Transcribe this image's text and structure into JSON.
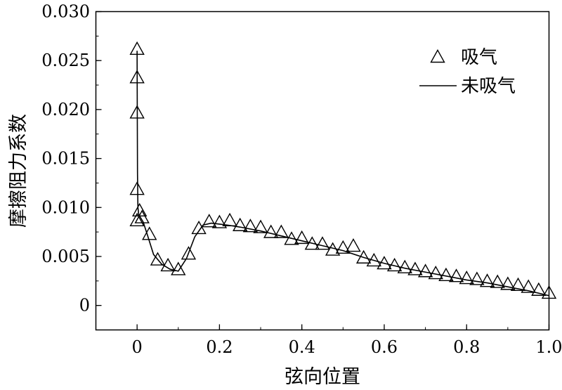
{
  "chart_data": {
    "type": "line",
    "xlabel": "弦向位置",
    "ylabel": "摩擦阻力系数",
    "xlim": [
      -0.1,
      1.0
    ],
    "ylim": [
      -0.0025,
      0.03
    ],
    "xticks": [
      0,
      0.2,
      0.4,
      0.6,
      0.8,
      1.0
    ],
    "xtick_labels": [
      "0",
      "0.2",
      "0.4",
      "0.6",
      "0.8",
      "1.0"
    ],
    "yticks": [
      0,
      0.005,
      0.01,
      0.015,
      0.02,
      0.025,
      0.03
    ],
    "ytick_labels": [
      "0",
      "0.005",
      "0.010",
      "0.015",
      "0.020",
      "0.025",
      "0.030"
    ],
    "legend_position": "top-right",
    "grid": false,
    "series": [
      {
        "name": "吸气",
        "style": "triangle-markers",
        "x": [
          0,
          0,
          0,
          0,
          0,
          0.006,
          0.012,
          0.03,
          0.05,
          0.075,
          0.1,
          0.125,
          0.15,
          0.175,
          0.2,
          0.225,
          0.25,
          0.275,
          0.3,
          0.325,
          0.35,
          0.375,
          0.4,
          0.425,
          0.45,
          0.475,
          0.5,
          0.525,
          0.55,
          0.575,
          0.6,
          0.625,
          0.65,
          0.675,
          0.7,
          0.725,
          0.75,
          0.775,
          0.8,
          0.825,
          0.85,
          0.875,
          0.9,
          0.925,
          0.95,
          0.975,
          1.0
        ],
        "y": [
          0.0261,
          0.0232,
          0.0196,
          0.0118,
          0.0086,
          0.0096,
          0.0089,
          0.0072,
          0.0046,
          0.004,
          0.0036,
          0.0052,
          0.0078,
          0.0085,
          0.0084,
          0.0086,
          0.0081,
          0.008,
          0.0079,
          0.0074,
          0.0074,
          0.0067,
          0.0068,
          0.0062,
          0.0062,
          0.0056,
          0.0058,
          0.006,
          0.0048,
          0.0045,
          0.0042,
          0.004,
          0.0038,
          0.0036,
          0.0034,
          0.0032,
          0.003,
          0.0029,
          0.0027,
          0.0026,
          0.0024,
          0.0023,
          0.0021,
          0.002,
          0.0018,
          0.0015,
          0.0012
        ]
      },
      {
        "name": "未吸气",
        "style": "solid-line",
        "x": [
          0,
          0.0005,
          0.001,
          0.002,
          0.004,
          0.008,
          0.015,
          0.025,
          0.04,
          0.06,
          0.08,
          0.1,
          0.12,
          0.14,
          0.16,
          0.18,
          0.2,
          0.22,
          0.25,
          0.3,
          0.35,
          0.4,
          0.45,
          0.5,
          0.55,
          0.6,
          0.65,
          0.7,
          0.75,
          0.8,
          0.85,
          0.9,
          0.95,
          1.0
        ],
        "y": [
          0.026,
          0.0195,
          0.0135,
          0.01,
          0.0093,
          0.009,
          0.0085,
          0.0072,
          0.0052,
          0.0042,
          0.0037,
          0.0035,
          0.0048,
          0.007,
          0.0082,
          0.0084,
          0.0083,
          0.0082,
          0.008,
          0.0076,
          0.0071,
          0.0066,
          0.0061,
          0.0056,
          0.0049,
          0.0043,
          0.0038,
          0.0034,
          0.003,
          0.0026,
          0.0023,
          0.0019,
          0.0015,
          0.001
        ]
      }
    ]
  }
}
